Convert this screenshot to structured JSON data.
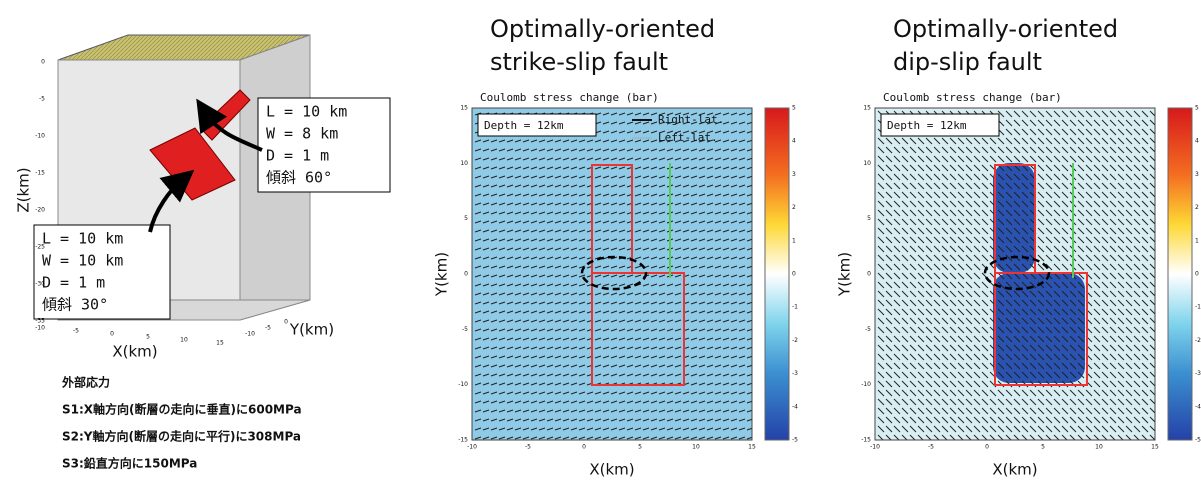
{
  "model": {
    "z_label": "Z(km)",
    "z_ticks": [
      "0",
      "-5",
      "-10",
      "-15",
      "-20",
      "-25",
      "-30",
      "-35"
    ],
    "x_label": "X(km)",
    "x_ticks": [
      "-10",
      "-5",
      "0",
      "5",
      "10",
      "15"
    ],
    "y_label": "Y(km)",
    "y_ticks": [
      "-10",
      "-5",
      "0"
    ],
    "fault_upper": [
      "L = 10 km",
      "W = 8 km",
      "D = 1 m",
      "傾斜  60°"
    ],
    "fault_lower": [
      "L = 10 km",
      "W = 10 km",
      "D = 1 m",
      "傾斜  30°"
    ]
  },
  "stress": {
    "title": "外部応力",
    "lines": [
      "S1:X軸方向(断層の走向に垂直)に600MPa",
      "S2:Y軸方向(断層の走向に平行)に308MPa",
      "S3:鉛直方向に150MPa"
    ]
  },
  "panels": [
    {
      "title": [
        "Optimally-oriented",
        "strike-slip fault"
      ],
      "subtitle": "Coulomb stress change (bar)",
      "depth": "Depth = 12km",
      "legend": [
        "Right-lat.",
        "Left-lat."
      ],
      "x_label": "X(km)",
      "y_label": "Y(km)",
      "x_ticks": [
        "-10",
        "-5",
        "0",
        "5",
        "10",
        "15"
      ],
      "y_ticks": [
        "15",
        "10",
        "5",
        "0",
        "-5",
        "-10",
        "-15"
      ],
      "colorbar_ticks": [
        "5",
        "4",
        "3",
        "2",
        "1",
        "0",
        "-1",
        "-2",
        "-3",
        "-4",
        "-5"
      ]
    },
    {
      "title": [
        "Optimally-oriented",
        "dip-slip fault"
      ],
      "subtitle": "Coulomb stress change (bar)",
      "depth": "Depth = 12km",
      "x_label": "X(km)",
      "y_label": "Y(km)",
      "x_ticks": [
        "-10",
        "-5",
        "0",
        "5",
        "10",
        "15"
      ],
      "y_ticks": [
        "15",
        "10",
        "5",
        "0",
        "-5",
        "-10",
        "-15"
      ],
      "colorbar_ticks": [
        "5",
        "4",
        "3",
        "2",
        "1",
        "0",
        "-1",
        "-2",
        "-3",
        "-4",
        "-5"
      ]
    }
  ]
}
